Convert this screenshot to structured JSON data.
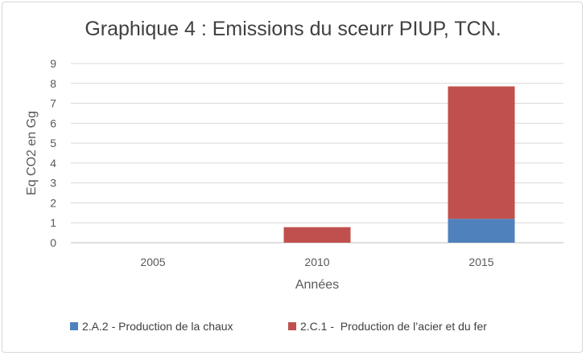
{
  "chart_data": {
    "type": "bar",
    "stacked": true,
    "title": "Graphique 4 : Emissions du sceurr PIUP, TCN.",
    "xlabel": "Années",
    "ylabel": "Eq CO2 en Gg",
    "categories": [
      "2005",
      "2010",
      "2015"
    ],
    "ylim": [
      0,
      9
    ],
    "yticks": [
      "0",
      "1",
      "2",
      "3",
      "4",
      "5",
      "6",
      "7",
      "8",
      "9"
    ],
    "grid": true,
    "legend_position": "bottom",
    "series": [
      {
        "name": "2.A.2 - Production de la chaux",
        "color": "#4f81bd",
        "values": [
          0,
          0,
          1.2
        ]
      },
      {
        "name": "2.C.1 -  Production de l’acier et du fer",
        "color": "#c0504d",
        "values": [
          0,
          0.78,
          6.65
        ]
      }
    ]
  }
}
